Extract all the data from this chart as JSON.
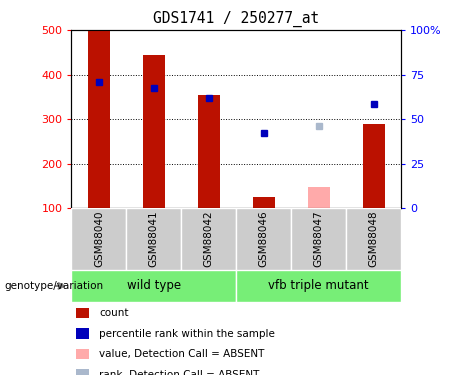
{
  "title": "GDS1741 / 250277_at",
  "samples": [
    "GSM88040",
    "GSM88041",
    "GSM88042",
    "GSM88046",
    "GSM88047",
    "GSM88048"
  ],
  "bar_colors_present": "#bb1100",
  "bar_colors_absent": "#ffaaaa",
  "dot_colors_present": "#0000bb",
  "dot_colors_absent": "#aab8cc",
  "ylim_left": [
    100,
    500
  ],
  "ylim_right": [
    0,
    100
  ],
  "yticks_left": [
    100,
    200,
    300,
    400,
    500
  ],
  "yticks_right": [
    0,
    25,
    50,
    75,
    100
  ],
  "counts": [
    500,
    443,
    355,
    126,
    148,
    290
  ],
  "ranks": [
    384,
    370,
    347,
    268,
    284,
    334
  ],
  "detection": [
    "P",
    "P",
    "P",
    "P",
    "A",
    "P"
  ],
  "bar_width": 0.4,
  "legend_items": [
    {
      "label": "count",
      "color": "#bb1100"
    },
    {
      "label": "percentile rank within the sample",
      "color": "#0000bb"
    },
    {
      "label": "value, Detection Call = ABSENT",
      "color": "#ffaaaa"
    },
    {
      "label": "rank, Detection Call = ABSENT",
      "color": "#aab8cc"
    }
  ],
  "grey_box_color": "#cccccc",
  "group_color": "#77ee77",
  "group1_label": "wild type",
  "group2_label": "vfb triple mutant",
  "geno_label": "genotype/variation"
}
